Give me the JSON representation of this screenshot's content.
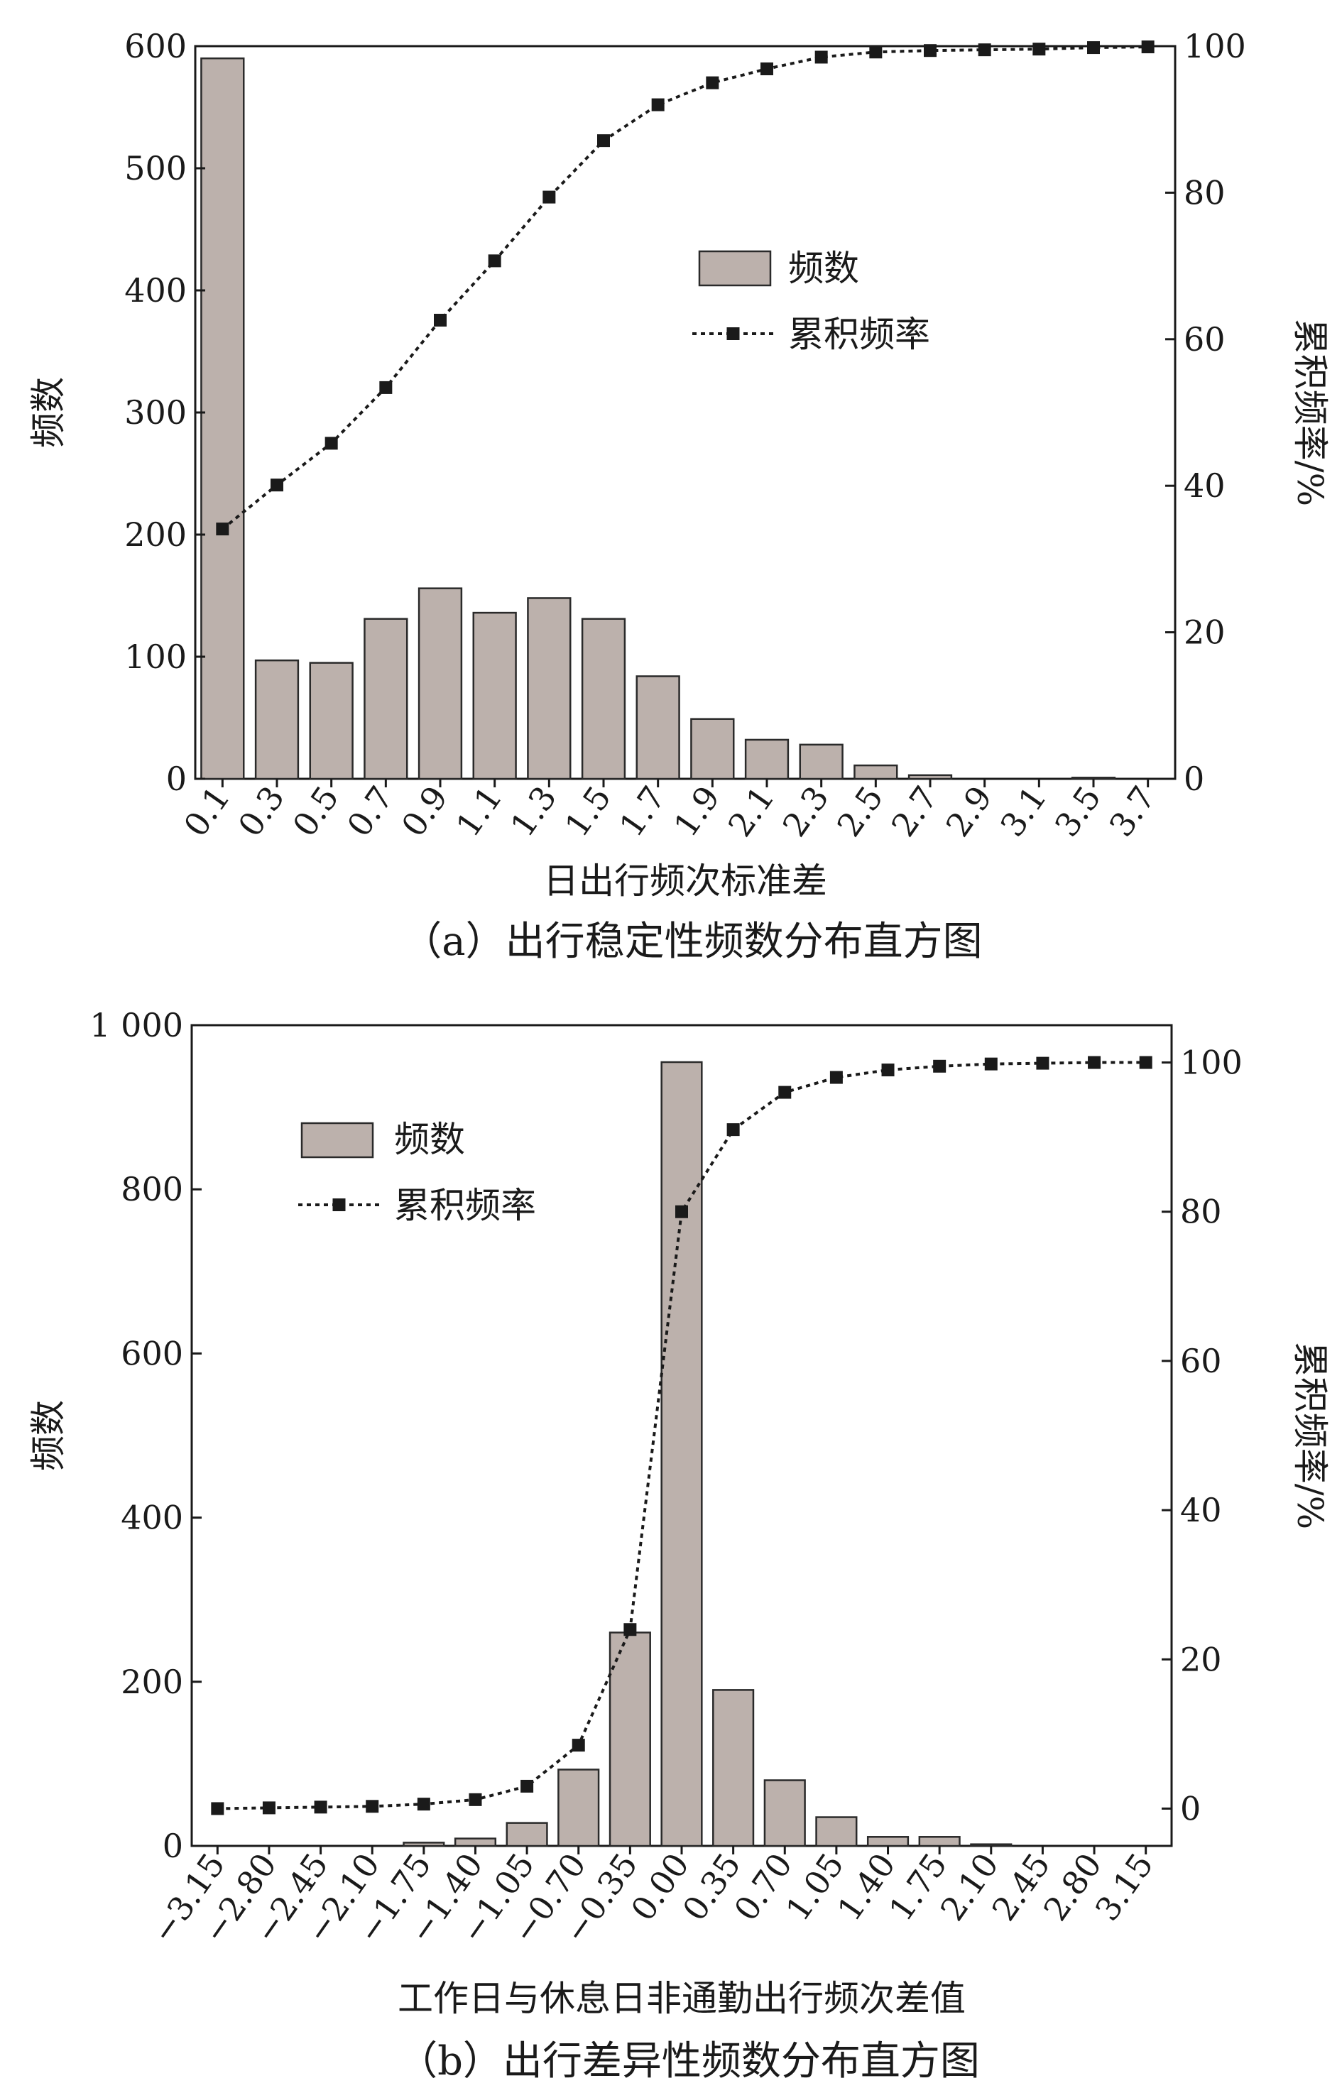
{
  "colors": {
    "bar_fill": "#bcb1ac",
    "bar_stroke": "#2a2a2a",
    "line": "#1a1a1a",
    "marker": "#1a1a1a"
  },
  "chart_data": [
    {
      "type": "bar",
      "caption": "（a）出行稳定性频数分布直方图",
      "xlabel": "日出行频次标准差",
      "ylabel": "频数",
      "y2label": "累积频率/%",
      "categories": [
        "0.1",
        "0.3",
        "0.5",
        "0.7",
        "0.9",
        "1.1",
        "1.3",
        "1.5",
        "1.7",
        "1.9",
        "2.1",
        "2.3",
        "2.5",
        "2.7",
        "2.9",
        "3.1",
        "3.5",
        "3.7"
      ],
      "ylim": [
        0,
        600
      ],
      "yticks": [
        0,
        100,
        200,
        300,
        400,
        500,
        600
      ],
      "ytick_labels": [
        "0",
        "100",
        "200",
        "300",
        "400",
        "500",
        "600"
      ],
      "y2lim": [
        0,
        100
      ],
      "y2ticks": [
        0,
        20,
        40,
        60,
        80,
        100
      ],
      "legend_position": "center-right",
      "series": [
        {
          "name": "频数",
          "kind": "bar",
          "axis": "left",
          "values": [
            590,
            97,
            95,
            131,
            156,
            136,
            148,
            131,
            84,
            49,
            32,
            28,
            11,
            3,
            0,
            0,
            1,
            0
          ]
        },
        {
          "name": "累积频率",
          "kind": "line",
          "axis": "right",
          "values": [
            34.1,
            40.1,
            45.8,
            53.4,
            62.6,
            70.7,
            79.4,
            87.1,
            92.0,
            95.0,
            96.9,
            98.5,
            99.2,
            99.4,
            99.5,
            99.6,
            99.8,
            99.9
          ]
        }
      ]
    },
    {
      "type": "bar",
      "caption": "（b）出行差异性频数分布直方图",
      "xlabel": "工作日与休息日非通勤出行频次差值",
      "ylabel": "频数",
      "y2label": "累积频率/%",
      "categories": [
        "−3.15",
        "−2.80",
        "−2.45",
        "−2.10",
        "−1.75",
        "−1.40",
        "−1.05",
        "−0.70",
        "−0.35",
        "0.00",
        "0.35",
        "0.70",
        "1.05",
        "1.40",
        "1.75",
        "2.10",
        "2.45",
        "2.80",
        "3.15"
      ],
      "ylim": [
        0,
        1000
      ],
      "yticks": [
        0,
        200,
        400,
        600,
        800,
        1000
      ],
      "ytick_labels": [
        "0",
        "200",
        "400",
        "600",
        "800",
        "1 000"
      ],
      "y2lim": [
        -5,
        105
      ],
      "y2ticks": [
        0,
        20,
        40,
        60,
        80,
        100
      ],
      "legend_position": "top-left",
      "series": [
        {
          "name": "频数",
          "kind": "bar",
          "axis": "left",
          "values": [
            0,
            0,
            0,
            0,
            4,
            9,
            28,
            93,
            260,
            955,
            190,
            80,
            35,
            11,
            11,
            2,
            0,
            0,
            0
          ]
        },
        {
          "name": "累积频率",
          "kind": "line",
          "axis": "right",
          "values": [
            0.0,
            0.1,
            0.2,
            0.3,
            0.6,
            1.2,
            3.0,
            8.5,
            24.0,
            80.0,
            91.0,
            96.0,
            98.0,
            99.0,
            99.5,
            99.8,
            99.9,
            100.0,
            100.0
          ]
        }
      ]
    }
  ]
}
